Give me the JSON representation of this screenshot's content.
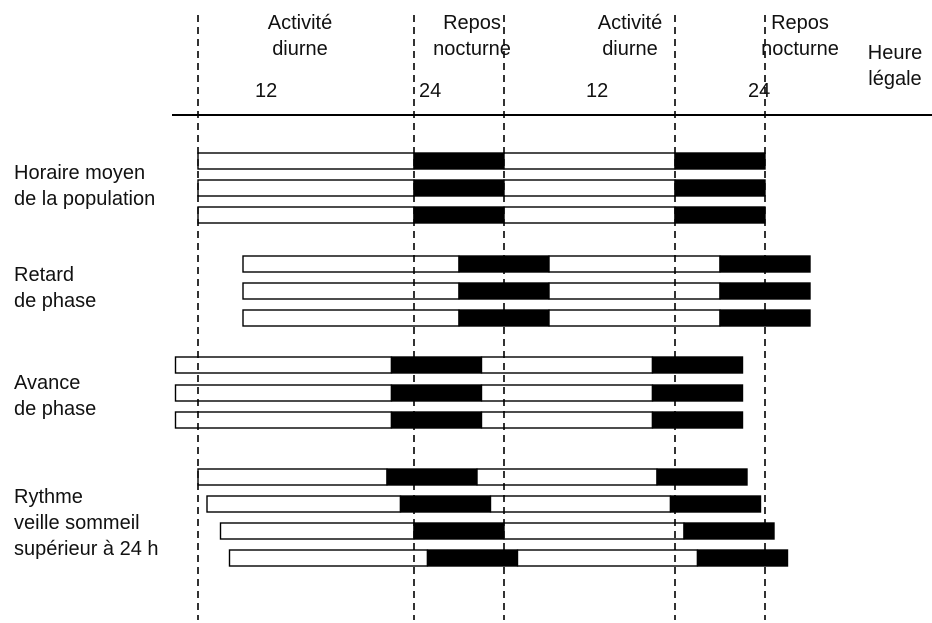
{
  "header": {
    "activite_diurne": [
      "Activité",
      "diurne"
    ],
    "repos_nocturne": [
      "Repos",
      "nocturne"
    ],
    "heure_legale": [
      "Heure",
      "légale"
    ],
    "ticks": [
      "12",
      "24",
      "12",
      "24"
    ]
  },
  "groups": [
    {
      "label": [
        "Horaire moyen",
        "de la population"
      ],
      "bars": [
        {
          "active_start_h": 0,
          "sleep_start_h": 24,
          "sleep_end_h": 34,
          "active2_end_h": 53,
          "sleep2_end_h": 63
        },
        {
          "active_start_h": 0,
          "sleep_start_h": 24,
          "sleep_end_h": 34,
          "active2_end_h": 53,
          "sleep2_end_h": 63
        },
        {
          "active_start_h": 0,
          "sleep_start_h": 24,
          "sleep_end_h": 34,
          "active2_end_h": 53,
          "sleep2_end_h": 63
        }
      ]
    },
    {
      "label": [
        "Retard",
        "de phase"
      ],
      "bars": [
        {
          "active_start_h": 5,
          "sleep_start_h": 29,
          "sleep_end_h": 39,
          "active2_end_h": 58,
          "sleep2_end_h": 68
        },
        {
          "active_start_h": 5,
          "sleep_start_h": 29,
          "sleep_end_h": 39,
          "active2_end_h": 58,
          "sleep2_end_h": 68
        },
        {
          "active_start_h": 5,
          "sleep_start_h": 29,
          "sleep_end_h": 39,
          "active2_end_h": 58,
          "sleep2_end_h": 68
        }
      ]
    },
    {
      "label": [
        "Avance",
        "de phase"
      ],
      "bars": [
        {
          "active_start_h": -2.5,
          "sleep_start_h": 21.5,
          "sleep_end_h": 31.5,
          "active2_end_h": 50.5,
          "sleep2_end_h": 60.5
        },
        {
          "active_start_h": -2.5,
          "sleep_start_h": 21.5,
          "sleep_end_h": 31.5,
          "active2_end_h": 50.5,
          "sleep2_end_h": 60.5
        },
        {
          "active_start_h": -2.5,
          "sleep_start_h": 21.5,
          "sleep_end_h": 31.5,
          "active2_end_h": 50.5,
          "sleep2_end_h": 60.5
        }
      ]
    },
    {
      "label": [
        "Rythme",
        "veille sommeil",
        "supérieur à 24 h"
      ],
      "bars": [
        {
          "active_start_h": 0,
          "sleep_start_h": 21,
          "sleep_end_h": 31,
          "active2_end_h": 51,
          "sleep2_end_h": 61
        },
        {
          "active_start_h": 1,
          "sleep_start_h": 22.5,
          "sleep_end_h": 32.5,
          "active2_end_h": 52.5,
          "sleep2_end_h": 62.5
        },
        {
          "active_start_h": 2.5,
          "sleep_start_h": 24,
          "sleep_end_h": 34,
          "active2_end_h": 54,
          "sleep2_end_h": 64
        },
        {
          "active_start_h": 3.5,
          "sleep_start_h": 25.5,
          "sleep_end_h": 35.5,
          "active2_end_h": 55.5,
          "sleep2_end_h": 65.5
        }
      ]
    }
  ],
  "colors": {
    "sleep": "#000000",
    "activity": "#ffffff",
    "stroke": "#000000"
  }
}
